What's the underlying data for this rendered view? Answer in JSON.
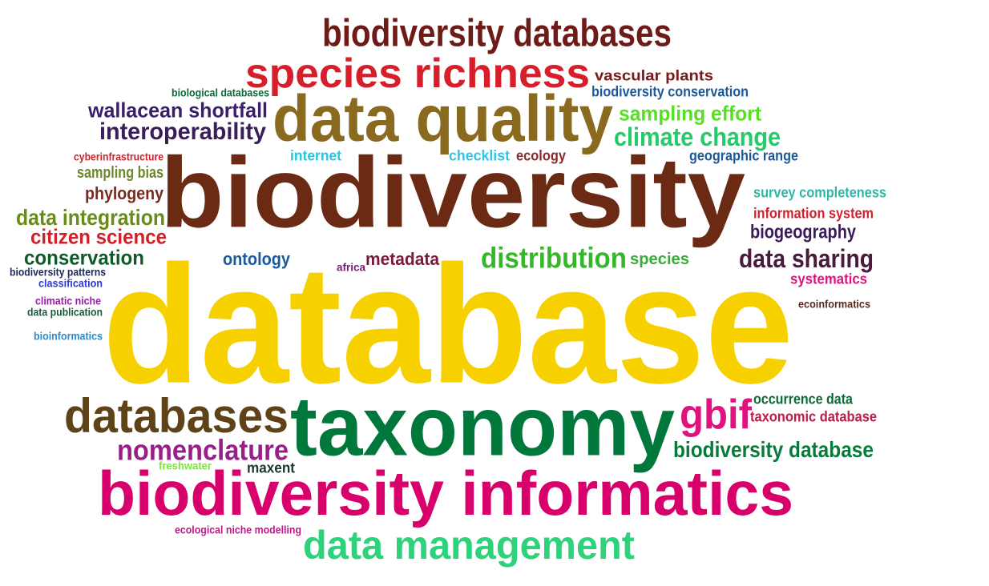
{
  "words": [
    {
      "text": "database",
      "color": "#F7D000"
    },
    {
      "text": "biodiversity",
      "color": "#6A2A14"
    },
    {
      "text": "taxonomy",
      "color": "#00783C"
    },
    {
      "text": "biodiversity informatics",
      "color": "#D8006B"
    },
    {
      "text": "data quality",
      "color": "#8A6A1E"
    },
    {
      "text": "species richness",
      "color": "#D61F2A"
    },
    {
      "text": "biodiversity databases",
      "color": "#6E1A16"
    },
    {
      "text": "databases",
      "color": "#5E4318"
    },
    {
      "text": "data management",
      "color": "#2ED27A"
    },
    {
      "text": "gbif",
      "color": "#E0137E"
    },
    {
      "text": "nomenclature",
      "color": "#9A1E8A"
    },
    {
      "text": "distribution",
      "color": "#35B828"
    },
    {
      "text": "climate change",
      "color": "#22CC68"
    },
    {
      "text": "sampling effort",
      "color": "#55E020"
    },
    {
      "text": "interoperability",
      "color": "#3A1E5A"
    },
    {
      "text": "wallacean shortfall",
      "color": "#3A1E6A"
    },
    {
      "text": "data sharing",
      "color": "#4A1A3A"
    },
    {
      "text": "biodiversity database",
      "color": "#0A7A3A"
    },
    {
      "text": "data integration",
      "color": "#6A8A1A"
    },
    {
      "text": "citizen science",
      "color": "#D2202A"
    },
    {
      "text": "conservation",
      "color": "#0E5A2A"
    },
    {
      "text": "phylogeny",
      "color": "#7A2A20"
    },
    {
      "text": "ontology",
      "color": "#1A5A9A"
    },
    {
      "text": "metadata",
      "color": "#7A1A3A"
    },
    {
      "text": "species",
      "color": "#3AAA3A"
    },
    {
      "text": "biogeography",
      "color": "#3A1A5A"
    },
    {
      "text": "sampling bias",
      "color": "#6A8A2A"
    },
    {
      "text": "internet",
      "color": "#22C8E8"
    },
    {
      "text": "checklist",
      "color": "#2AC8E8"
    },
    {
      "text": "ecology",
      "color": "#8A2A2A"
    },
    {
      "text": "geographic range",
      "color": "#1A5A9A"
    },
    {
      "text": "vascular plants",
      "color": "#7A1A1A"
    },
    {
      "text": "biodiversity conservation",
      "color": "#1A5A9A"
    },
    {
      "text": "biological databases",
      "color": "#0A6A3A"
    },
    {
      "text": "cyberinfrastructure",
      "color": "#D2202A"
    },
    {
      "text": "survey completeness",
      "color": "#2AB8A8"
    },
    {
      "text": "information system",
      "color": "#D2202A"
    },
    {
      "text": "systematics",
      "color": "#E0137E"
    },
    {
      "text": "ecoinformatics",
      "color": "#5A2A1A"
    },
    {
      "text": "occurrence data",
      "color": "#0A6A3A"
    },
    {
      "text": "taxonomic database",
      "color": "#C01A4A"
    },
    {
      "text": "maxent",
      "color": "#1A3A2A"
    },
    {
      "text": "freshwater",
      "color": "#7AE83A"
    },
    {
      "text": "ecological niche modelling",
      "color": "#C01A8A"
    },
    {
      "text": "africa",
      "color": "#7A1A7A"
    },
    {
      "text": "biodiversity patterns",
      "color": "#1A2A5A"
    },
    {
      "text": "classification",
      "color": "#2A3AD8"
    },
    {
      "text": "climatic niche",
      "color": "#A01AAA"
    },
    {
      "text": "data publication",
      "color": "#1A5A3A"
    },
    {
      "text": "bioinformatics",
      "color": "#2A8AD0"
    }
  ]
}
